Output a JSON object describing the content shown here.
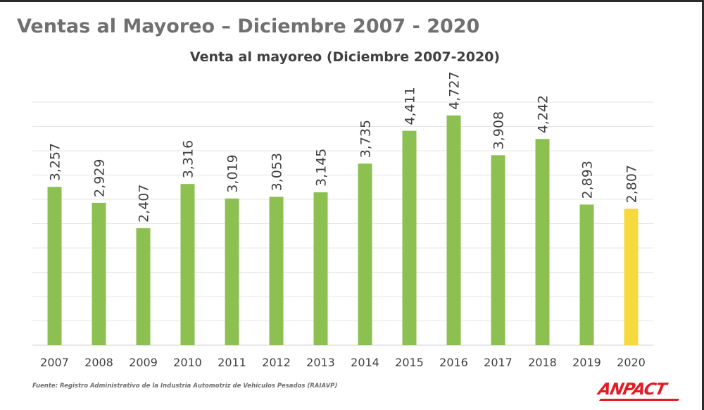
{
  "page": {
    "title": "Ventas al Mayoreo – Diciembre 2007 - 2020",
    "source": "Fuente: Registro Administrativo de la Industria Automotriz de Vehículos Pesados (RAIAVP)",
    "logo": "ANPACT"
  },
  "chart_data": {
    "type": "bar",
    "title": "Venta al mayoreo (Diciembre 2007-2020)",
    "xlabel": "",
    "ylabel": "",
    "categories": [
      "2007",
      "2008",
      "2009",
      "2010",
      "2011",
      "2012",
      "2013",
      "2014",
      "2015",
      "2016",
      "2017",
      "2018",
      "2019",
      "2020"
    ],
    "values": [
      3257,
      2929,
      2407,
      3316,
      3019,
      3053,
      3145,
      3735,
      4411,
      4727,
      3908,
      4242,
      2893,
      2807
    ],
    "data_labels": [
      "3,257",
      "2,929",
      "2,407",
      "3,316",
      "3,019",
      "3,053",
      "3,145",
      "3,735",
      "4,411",
      "4,727",
      "3,908",
      "4,242",
      "2,893",
      "2,807"
    ],
    "ylim": [
      0,
      5000
    ],
    "grid": true,
    "legend": "none",
    "colors": {
      "default": "#8cc152",
      "highlight": "#f5d93e",
      "grid": "#e4e4e4",
      "label": "#404040"
    },
    "highlight_category": "2020"
  }
}
